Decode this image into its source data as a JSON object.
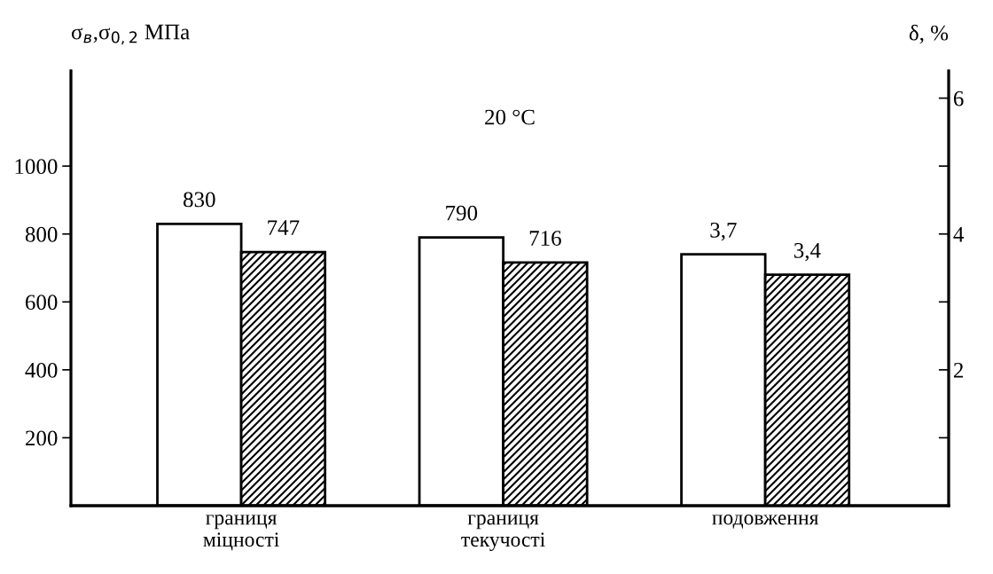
{
  "chart_data": {
    "type": "bar",
    "title": "20 °C",
    "ylabel": "σ$_{в}$,σ$_{0,2}$ МПа",
    "y2label": "δ, %",
    "categories": [
      "границя\nміцності",
      "границя\nтекучості",
      "подовження"
    ],
    "series": [
      {
        "color": "#ffffff",
        "values": [
          830,
          790,
          null
        ],
        "value_labels": [
          "830",
          "790",
          null
        ]
      },
      {
        "color": "#000000",
        "values": [
          747,
          716,
          null
        ],
        "value_labels": [
          "747",
          "716",
          null
        ]
      },
      {
        "color": "#ffffff",
        "axis": "y2",
        "values": [
          null,
          null,
          3.7
        ],
        "value_labels": [
          null,
          null,
          "3,7"
        ]
      },
      {
        "color": "#000000",
        "axis": "y2",
        "values": [
          null,
          null,
          3.4
        ],
        "value_labels": [
          null,
          null,
          "3,4"
        ]
      }
    ],
    "ylim": [
      0,
      1280
    ],
    "yticks": [
      200,
      400,
      600,
      800,
      1000
    ],
    "y2lim": [
      0,
      6.4
    ],
    "y2ticks": [
      {
        "value": 1,
        "label": null
      },
      2,
      {
        "value": 3,
        "label": null
      },
      4,
      {
        "value": 5,
        "label": null
      },
      6
    ],
    "grid": false,
    "legend": false
  }
}
